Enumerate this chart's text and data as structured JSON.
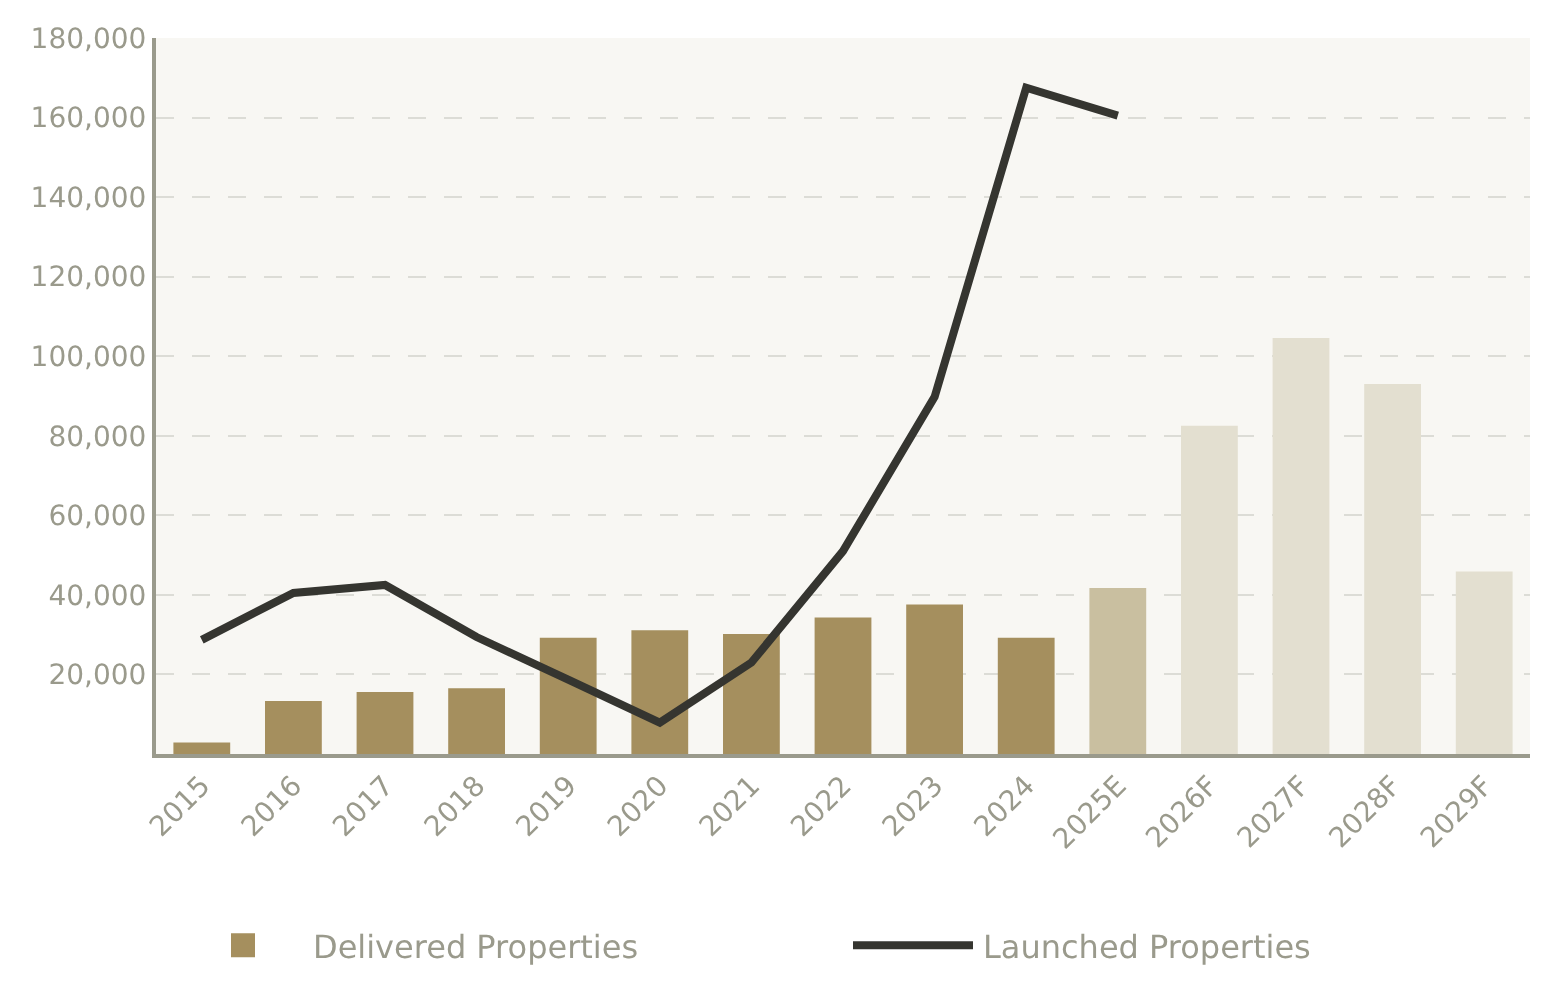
{
  "chart_data": {
    "type": "bar",
    "categories": [
      "2015",
      "2016",
      "2017",
      "2018",
      "2019",
      "2020",
      "2021",
      "2022",
      "2023",
      "2024",
      "2025E",
      "2026F",
      "2027F",
      "2028F",
      "2029F"
    ],
    "series": [
      {
        "name": "Delivered Properties",
        "color": "#a58f5e",
        "colors": [
          "#a58f5e",
          "#a58f5e",
          "#a58f5e",
          "#a58f5e",
          "#a58f5e",
          "#a58f5e",
          "#a58f5e",
          "#a58f5e",
          "#a58f5e",
          "#a58f5e",
          "#c9bfa0",
          "#e3dfd0",
          "#e3dfd0",
          "#e3dfd0",
          "#e3dfd0"
        ],
        "values": [
          2900,
          13300,
          15600,
          16500,
          29200,
          31100,
          30200,
          34300,
          37600,
          29200,
          41700,
          82500,
          104600,
          93000,
          45900
        ]
      },
      {
        "name": "Launched Properties",
        "type": "line",
        "color": "#353530",
        "values": [
          28700,
          40500,
          42500,
          29400,
          18700,
          7900,
          23000,
          51000,
          89800,
          167500,
          160500,
          null,
          null,
          null,
          null
        ]
      }
    ],
    "ylim": [
      0,
      180000
    ],
    "yticks": [
      {
        "value": 20000,
        "label": "20,000"
      },
      {
        "value": 40000,
        "label": "40,000"
      },
      {
        "value": 60000,
        "label": "60,000"
      },
      {
        "value": 80000,
        "label": "80,000"
      },
      {
        "value": 100000,
        "label": "100,000"
      },
      {
        "value": 120000,
        "label": "120,000"
      },
      {
        "value": 140000,
        "label": "140,000"
      },
      {
        "value": 160000,
        "label": "160,000"
      },
      {
        "value": 180000,
        "label": "180,000"
      }
    ],
    "grid": "y",
    "legend": "bottom",
    "marker": "none",
    "line_style": "solid"
  }
}
